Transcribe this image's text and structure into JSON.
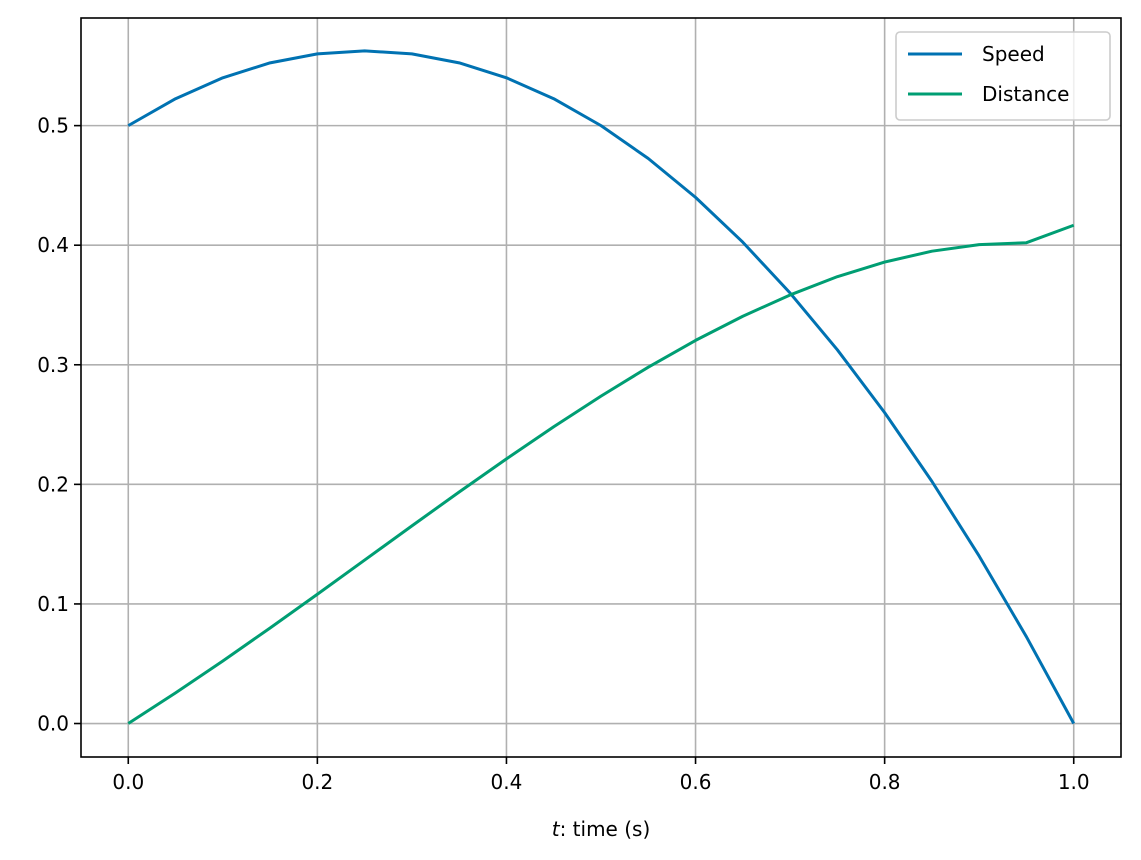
{
  "chart_data": {
    "type": "line",
    "title": "",
    "xlabel": {
      "italic": "t",
      "rest": ": time (s)"
    },
    "ylabel": "",
    "xlim": [
      -0.05,
      1.05
    ],
    "ylim": [
      -0.028,
      0.59
    ],
    "x_ticks": [
      0.0,
      0.2,
      0.4,
      0.6,
      0.8,
      1.0
    ],
    "x_tick_labels": [
      "0.0",
      "0.2",
      "0.4",
      "0.6",
      "0.8",
      "1.0"
    ],
    "y_ticks": [
      0.0,
      0.1,
      0.2,
      0.3,
      0.4,
      0.5
    ],
    "y_tick_labels": [
      "0.0",
      "0.1",
      "0.2",
      "0.3",
      "0.4",
      "0.5"
    ],
    "grid": true,
    "legend_position": "top-right",
    "x": [
      0.0,
      0.05,
      0.1,
      0.15,
      0.2,
      0.25,
      0.3,
      0.35,
      0.4,
      0.45,
      0.5,
      0.55,
      0.6,
      0.65,
      0.7,
      0.75,
      0.8,
      0.85,
      0.9,
      0.95,
      1.0
    ],
    "series": [
      {
        "name": "Speed",
        "color": "#0072b2",
        "values": [
          0.5,
          0.5225,
          0.54,
          0.5525,
          0.56,
          0.5625,
          0.56,
          0.5525,
          0.54,
          0.5225,
          0.5,
          0.4725,
          0.44,
          0.4025,
          0.36,
          0.3125,
          0.26,
          0.2025,
          0.14,
          0.0725,
          0.0
        ]
      },
      {
        "name": "Distance",
        "color": "#009e73",
        "values": [
          0.0,
          0.0256,
          0.0523,
          0.0799,
          0.1081,
          0.1367,
          0.1653,
          0.1936,
          0.2213,
          0.2482,
          0.2738,
          0.298,
          0.3204,
          0.3406,
          0.3584,
          0.3737,
          0.3859,
          0.395,
          0.4005,
          0.4021,
          0.4167
        ]
      }
    ]
  }
}
